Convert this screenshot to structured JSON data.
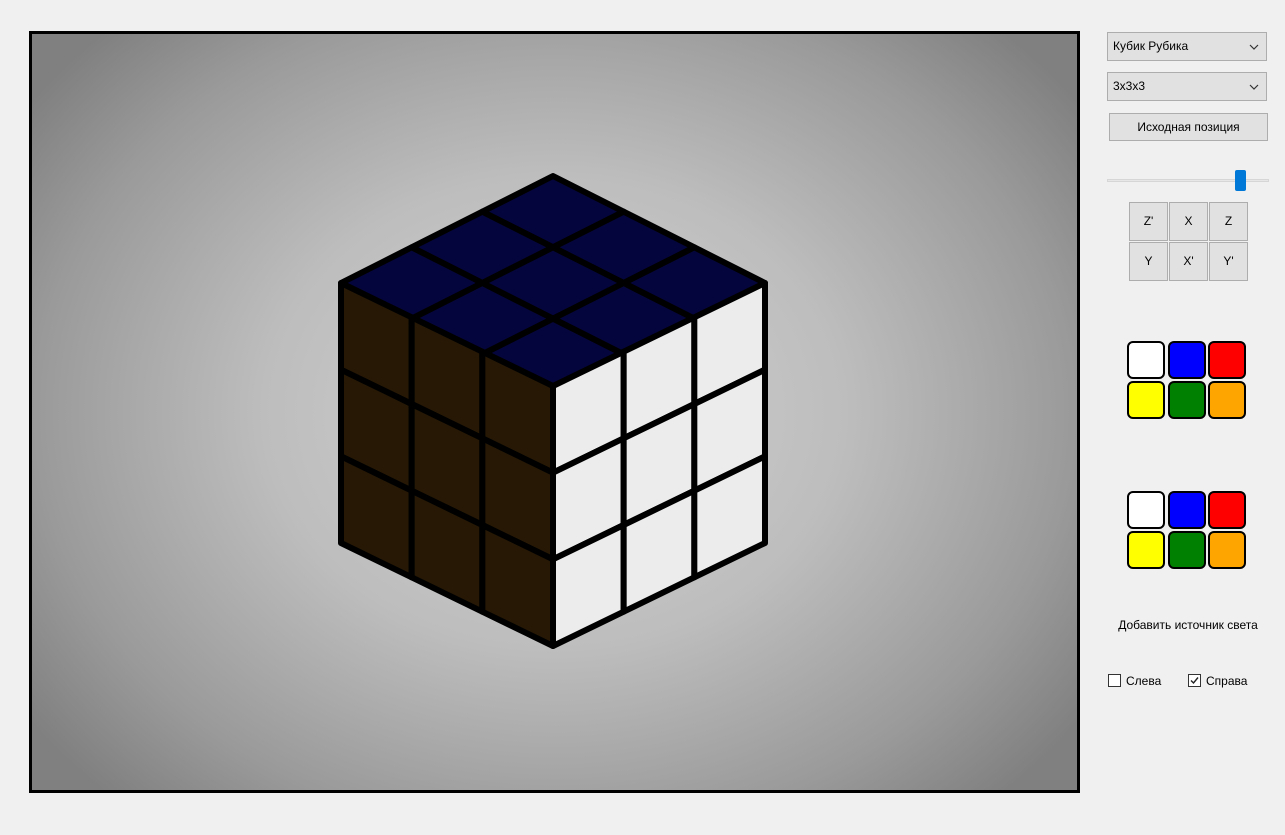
{
  "controls": {
    "puzzle_type": "Кубик Рубика",
    "size": "3x3x3",
    "reset_button": "Исходная позиция",
    "speed_slider_value": 0.82
  },
  "rotation_buttons": [
    {
      "label": "Z'"
    },
    {
      "label": "X"
    },
    {
      "label": "Z"
    },
    {
      "label": "Y"
    },
    {
      "label": "X'"
    },
    {
      "label": "Y'"
    }
  ],
  "palettes": [
    [
      "#ffffff",
      "#0000ff",
      "#ff0000",
      "#ffff00",
      "#008000",
      "#ffa500"
    ],
    [
      "#ffffff",
      "#0000ff",
      "#ff0000",
      "#ffff00",
      "#008000",
      "#ffa500"
    ]
  ],
  "lighting": {
    "label": "Добавить источник света",
    "left": {
      "label": "Слева",
      "checked": false
    },
    "right": {
      "label": "Справа",
      "checked": true
    }
  },
  "cube": {
    "top_color": "#05053d",
    "left_color": "#261805",
    "right_color": "#ececec"
  }
}
